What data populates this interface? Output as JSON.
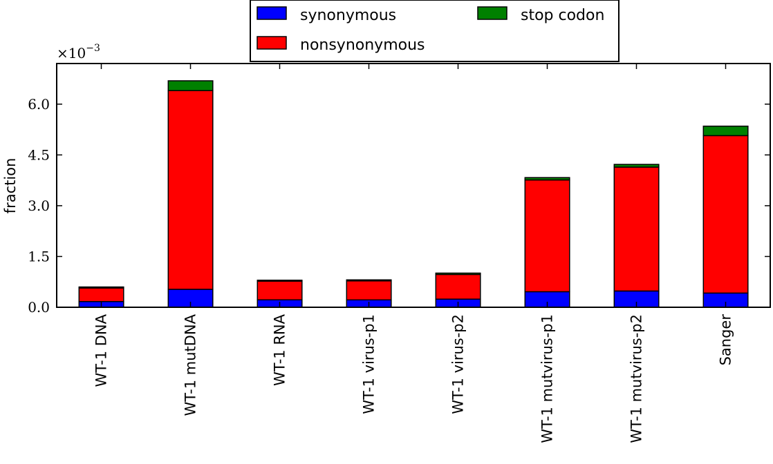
{
  "chart_data": {
    "type": "bar",
    "stacked": true,
    "categories": [
      "WT-1 DNA",
      "WT-1 mutDNA",
      "WT-1 RNA",
      "WT-1 virus-p1",
      "WT-1 virus-p2",
      "WT-1 mutvirus-p1",
      "WT-1 mutvirus-p2",
      "Sanger"
    ],
    "series": [
      {
        "name": "synonymous",
        "color": "#0000ff",
        "values": [
          0.17,
          0.53,
          0.22,
          0.22,
          0.24,
          0.46,
          0.48,
          0.42
        ]
      },
      {
        "name": "nonsynonymous",
        "color": "#ff0000",
        "values": [
          0.4,
          5.87,
          0.55,
          0.56,
          0.73,
          3.3,
          3.66,
          4.65
        ]
      },
      {
        "name": "stop codon",
        "color": "#008000",
        "values": [
          0.03,
          0.29,
          0.03,
          0.03,
          0.04,
          0.07,
          0.08,
          0.28
        ]
      }
    ],
    "ylabel": "fraction",
    "xlabel": "",
    "ylim": [
      0,
      7.2
    ],
    "yticks": [
      0.0,
      1.5,
      3.0,
      4.5,
      6.0
    ],
    "ytick_labels": [
      "0.0",
      "1.5",
      "3.0",
      "4.5",
      "6.0"
    ],
    "y_multiplier": {
      "base": "×10",
      "exponent": "−3"
    },
    "legend": {
      "placement": "top-center",
      "columns": 2
    },
    "grid": false
  }
}
